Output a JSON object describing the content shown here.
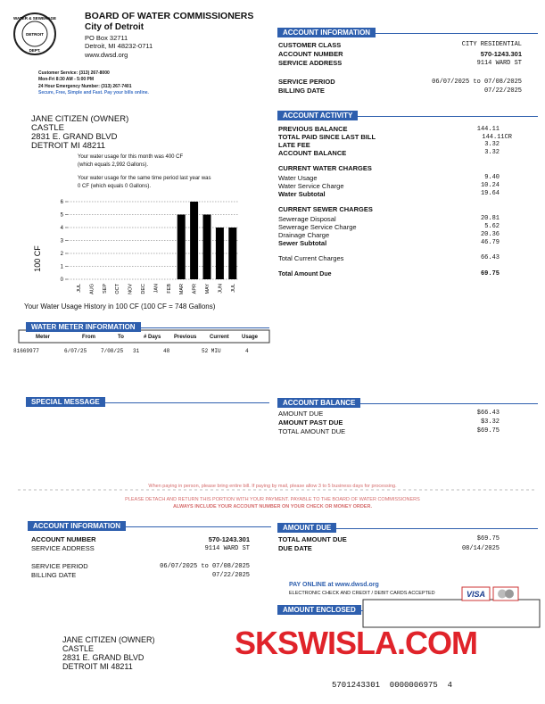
{
  "header": {
    "logo": {
      "top": "WATER & SEWERAGE",
      "middle": "DETROIT",
      "bottom": "DEPT."
    },
    "title": "BOARD OF WATER COMMISSIONERS",
    "city": "City of Detroit",
    "address": [
      "PO Box 32711",
      "Detroit, MI 48232-0711"
    ],
    "website": "www.dwsd.org",
    "contact": [
      "Customer Service: (313) 267-8000",
      "Mon-Fri 8:30 AM - 5:00 PM",
      "24 Hour Emergency Number: (313) 267-7401"
    ],
    "tagline": "Secure, Free, Simple and Fast.  Pay your bills online."
  },
  "customer": [
    "JANE CITIZEN (OWNER)",
    "CASTLE",
    "2831 E. GRAND BLVD",
    "DETROIT MI 48211"
  ],
  "account_information": {
    "title": "ACCOUNT INFORMATION",
    "rows": [
      [
        "CUSTOMER CLASS",
        "CITY RESIDENTIAL"
      ],
      [
        "ACCOUNT NUMBER",
        "570-1243.301"
      ],
      [
        "SERVICE ADDRESS",
        "9114 WARD ST"
      ],
      [
        "SERVICE PERIOD",
        "06/07/2025 to 07/08/2025"
      ],
      [
        "BILLING DATE",
        "07/22/2025"
      ]
    ]
  },
  "account_activity": {
    "title": "ACCOUNT ACTIVITY",
    "balance_rows": [
      [
        "PREVIOUS BALANCE",
        "144.11"
      ],
      [
        "TOTAL PAID SINCE LAST BILL",
        "144.11CR"
      ],
      [
        "LATE FEE",
        "3.32"
      ],
      [
        "ACCOUNT BALANCE",
        "3.32"
      ]
    ],
    "water_title": "CURRENT WATER CHARGES",
    "water_rows": [
      [
        "Water Usage",
        "9.40"
      ],
      [
        "Water Service Charge",
        "10.24"
      ],
      [
        "Water Subtotal",
        "19.64"
      ]
    ],
    "sewer_title": "CURRENT SEWER CHARGES",
    "sewer_rows": [
      [
        "Sewerage Disposal",
        "20.81"
      ],
      [
        "Sewerage Service Charge",
        "5.62"
      ],
      [
        "Drainage Charge",
        "20.36"
      ],
      [
        "Sewer Subtotal",
        "46.79"
      ]
    ],
    "total_current": [
      "Total Current Charges",
      "66.43"
    ],
    "total_due": [
      "Total Amount Due",
      "69.75"
    ]
  },
  "usage_notes": [
    "Your water usage for this month was 400 CF",
    "(which equals 2,992 Gallons).",
    "Your water usage for the same time period last year was",
    "0 CF (which equals 0 Gallons)."
  ],
  "chart_data": {
    "type": "bar",
    "title": "Your Water Usage History in 100 CF (100 CF = 748 Gallons)",
    "y_label": "100 CF",
    "categories": [
      "JUL",
      "AUG",
      "SEP",
      "OCT",
      "NOV",
      "DEC",
      "JAN",
      "FEB",
      "MAR",
      "APR",
      "MAY",
      "JUN",
      "JUL"
    ],
    "values": [
      0,
      0,
      0,
      0,
      0,
      0,
      0,
      0,
      5,
      6,
      5,
      4,
      4
    ],
    "color": "#000000",
    "ylim": [
      0,
      6
    ],
    "yticks": [
      0,
      1,
      2,
      3,
      4,
      5,
      6
    ],
    "grid": true
  },
  "water_meter": {
    "title": "WATER METER INFORMATION",
    "columns": [
      "Meter",
      "From",
      "To",
      "# Days",
      "Previous",
      "Current",
      "Usage"
    ],
    "rows": [
      [
        "81669977",
        "6/07/25",
        "7/08/25",
        "31",
        "48",
        "52 MIU",
        "4"
      ]
    ]
  },
  "special_message": {
    "title": "SPECIAL MESSAGE"
  },
  "account_balance": {
    "title": "ACCOUNT BALANCE",
    "rows": [
      [
        "AMOUNT DUE",
        "$66.43"
      ],
      [
        "AMOUNT PAST DUE",
        "$3.32"
      ],
      [
        "TOTAL AMOUNT DUE",
        "$69.75"
      ]
    ]
  },
  "notices": [
    "When paying in person, please bring entire bill.  If paying by mail, please allow 3 to 5 business days for processing.",
    "PLEASE DETACH AND RETURN THIS PORTION WITH YOUR PAYMENT. PAYABLE TO THE BOARD OF WATER COMMISSIONERS",
    "ALWAYS INCLUDE YOUR ACCOUNT NUMBER ON YOUR CHECK OR MONEY ORDER."
  ],
  "remittance": {
    "account_title": "ACCOUNT INFORMATION",
    "account_rows": [
      [
        "ACCOUNT NUMBER",
        "570-1243.301"
      ],
      [
        "SERVICE ADDRESS",
        "9114 WARD ST"
      ],
      [
        "SERVICE PERIOD",
        "06/07/2025 to 07/08/2025"
      ],
      [
        "BILLING DATE",
        "07/22/2025"
      ]
    ],
    "due_title": "AMOUNT DUE",
    "due_rows": [
      [
        "TOTAL AMOUNT DUE",
        "$69.75"
      ],
      [
        "DUE DATE",
        "08/14/2025"
      ]
    ],
    "pay_online": "PAY ONLINE at www.dwsd.org",
    "payment_methods": "ELECTRONIC CHECK AND CREDIT / DEBIT CARDS ACCEPTED",
    "card_brand": "VISA",
    "enclosed_title": "AMOUNT ENCLOSED",
    "scan_line": "5701243301  0000006975  4"
  },
  "watermark": "SKSWISLA.COM"
}
